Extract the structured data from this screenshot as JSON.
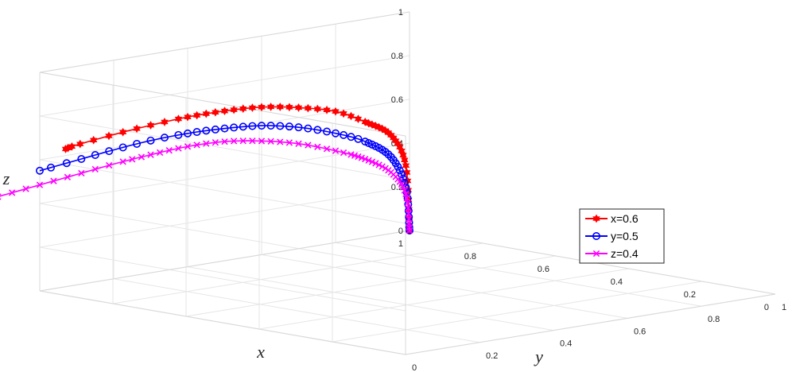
{
  "chart_data": {
    "type": "line",
    "grid": true,
    "axes": {
      "x": {
        "label": "x",
        "range": [
          0,
          1
        ],
        "ticks": [
          "0",
          "0.2",
          "0.4",
          "0.6",
          "0.8",
          "1"
        ]
      },
      "y": {
        "label": "y",
        "range": [
          0,
          1
        ],
        "ticks": [
          "0",
          "0.2",
          "0.4",
          "0.6",
          "0.8",
          "1"
        ]
      },
      "z": {
        "label": "z",
        "range": [
          0,
          1
        ],
        "ticks": [
          "0",
          "0.2",
          "0.4",
          "0.6",
          "0.8",
          "1"
        ]
      }
    },
    "legend": {
      "position": "right"
    },
    "series": [
      {
        "name": "x=0.6",
        "color": "#ff0000",
        "marker": "hexagram",
        "points": [
          [
            1,
            1,
            0
          ],
          [
            1,
            0.99,
            0.3
          ],
          [
            1,
            0.95,
            0.45
          ],
          [
            1,
            0.88,
            0.53
          ],
          [
            1,
            0.8,
            0.6
          ],
          [
            1,
            0.7,
            0.645
          ],
          [
            1,
            0.6,
            0.675
          ],
          [
            1,
            0.5,
            0.685
          ],
          [
            1,
            0.4,
            0.685
          ],
          [
            1,
            0.3,
            0.675
          ],
          [
            1,
            0.2,
            0.66
          ],
          [
            1,
            0.1,
            0.64
          ],
          [
            1,
            0.07,
            0.63
          ]
        ]
      },
      {
        "name": "y=0.5",
        "color": "#0000ff",
        "marker": "circle",
        "points": [
          [
            1,
            1,
            0
          ],
          [
            1,
            0.99,
            0.2
          ],
          [
            1,
            0.95,
            0.35
          ],
          [
            1,
            0.88,
            0.44
          ],
          [
            1,
            0.8,
            0.5
          ],
          [
            1,
            0.7,
            0.555
          ],
          [
            1,
            0.6,
            0.59
          ],
          [
            1,
            0.5,
            0.605
          ],
          [
            1,
            0.4,
            0.61
          ],
          [
            1,
            0.3,
            0.605
          ],
          [
            1,
            0.2,
            0.59
          ],
          [
            1,
            0.1,
            0.57
          ],
          [
            1,
            0.0,
            0.55
          ]
        ]
      },
      {
        "name": "z=0.4",
        "color": "#ff00ff",
        "marker": "x",
        "points": [
          [
            1,
            1,
            0
          ],
          [
            1,
            0.99,
            0.17
          ],
          [
            1,
            0.95,
            0.28
          ],
          [
            1,
            0.88,
            0.36
          ],
          [
            1,
            0.8,
            0.42
          ],
          [
            1,
            0.7,
            0.48
          ],
          [
            1,
            0.6,
            0.52
          ],
          [
            1,
            0.5,
            0.545
          ],
          [
            1,
            0.4,
            0.55
          ],
          [
            1,
            0.3,
            0.54
          ],
          [
            1,
            0.2,
            0.525
          ],
          [
            1,
            0.1,
            0.505
          ],
          [
            1,
            0.0,
            0.485
          ],
          [
            1,
            -0.1,
            0.465
          ],
          [
            1,
            -0.2,
            0.445
          ]
        ]
      }
    ]
  }
}
